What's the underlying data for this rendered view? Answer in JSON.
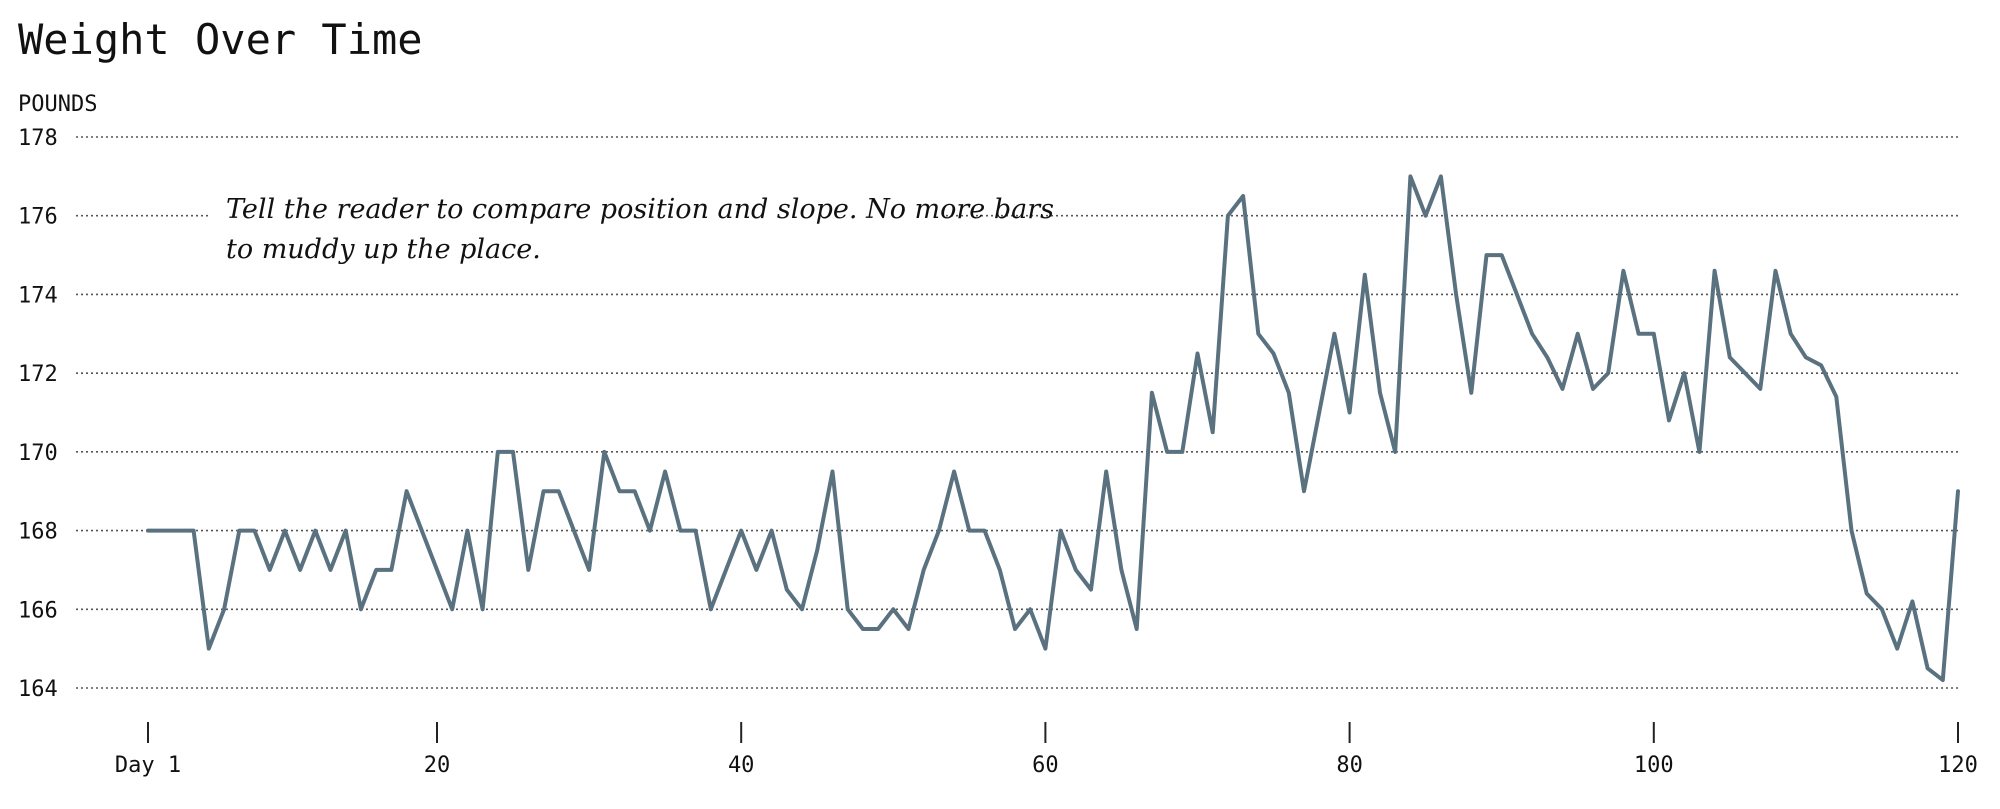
{
  "chart_data": {
    "type": "line",
    "title": "Weight Over Time",
    "ylabel": "POUNDS",
    "xlabel": "",
    "ylim": [
      164,
      178
    ],
    "xlim": [
      1,
      120
    ],
    "yticks": [
      164,
      166,
      168,
      170,
      172,
      174,
      176,
      178
    ],
    "xticks": [
      {
        "value": 1,
        "label": "Day 1"
      },
      {
        "value": 20,
        "label": "20"
      },
      {
        "value": 40,
        "label": "40"
      },
      {
        "value": 60,
        "label": "60"
      },
      {
        "value": 80,
        "label": "80"
      },
      {
        "value": 100,
        "label": "100"
      },
      {
        "value": 120,
        "label": "120"
      }
    ],
    "grid": "horizontal",
    "series_color": "#5a7280",
    "annotation": {
      "lines": [
        "Tell the reader to compare position and slope. No more bars",
        "to muddy up the place."
      ]
    },
    "series": [
      {
        "x": [
          1,
          2,
          3,
          4,
          5,
          6,
          7,
          8,
          9,
          10,
          11,
          12,
          13,
          14,
          15,
          16,
          17,
          18,
          19,
          20,
          21,
          22,
          23,
          24,
          25,
          26,
          27,
          28,
          29,
          30,
          31,
          32,
          33,
          34,
          35,
          36,
          37,
          38,
          39,
          40,
          41,
          42,
          43,
          44,
          45,
          46,
          47,
          48,
          49,
          50,
          51,
          52,
          53,
          54,
          55,
          56,
          57,
          58,
          59,
          60,
          61,
          62,
          63,
          64,
          65,
          66,
          67,
          68,
          69,
          70,
          71,
          72,
          73,
          74,
          75,
          76,
          77,
          78,
          79,
          80,
          81,
          82,
          83,
          84,
          85,
          86,
          87,
          88,
          89,
          90,
          91,
          92,
          93,
          94,
          95,
          96,
          97,
          98,
          99,
          100,
          101,
          102,
          103,
          104,
          105,
          106,
          107,
          108,
          109,
          110,
          111,
          112,
          113,
          114,
          115,
          116,
          117,
          118,
          119,
          120
        ],
        "values": [
          168,
          168,
          168,
          168,
          165,
          166,
          168,
          168,
          167,
          168,
          167,
          168,
          167,
          168,
          166,
          167,
          167,
          169,
          168,
          167,
          166,
          168,
          166,
          170,
          170,
          167,
          169,
          169,
          168,
          167,
          170,
          169,
          169,
          168,
          169.5,
          168,
          168,
          166,
          167,
          168,
          167,
          168,
          166.5,
          166,
          167.5,
          169.5,
          166,
          165.5,
          165.5,
          166,
          165.5,
          167,
          168,
          169.5,
          168,
          168,
          167,
          165.5,
          166,
          165,
          168,
          167,
          166.5,
          169.5,
          167,
          165.5,
          171.5,
          170,
          170,
          172.5,
          170.5,
          176,
          176.5,
          173,
          172.5,
          171.5,
          169,
          171,
          173,
          171,
          174.5,
          171.5,
          170,
          177,
          176,
          177,
          174,
          171.5,
          175,
          175,
          174,
          173,
          172.4,
          171.6,
          173,
          171.6,
          172,
          174.6,
          173,
          173,
          170.8,
          172,
          170,
          174.6,
          172.4,
          172,
          171.6,
          174.6,
          173,
          172.4,
          172.2,
          171.4,
          168,
          166.4,
          166,
          165,
          166.2,
          164.5,
          164.2,
          169
        ]
      }
    ]
  }
}
